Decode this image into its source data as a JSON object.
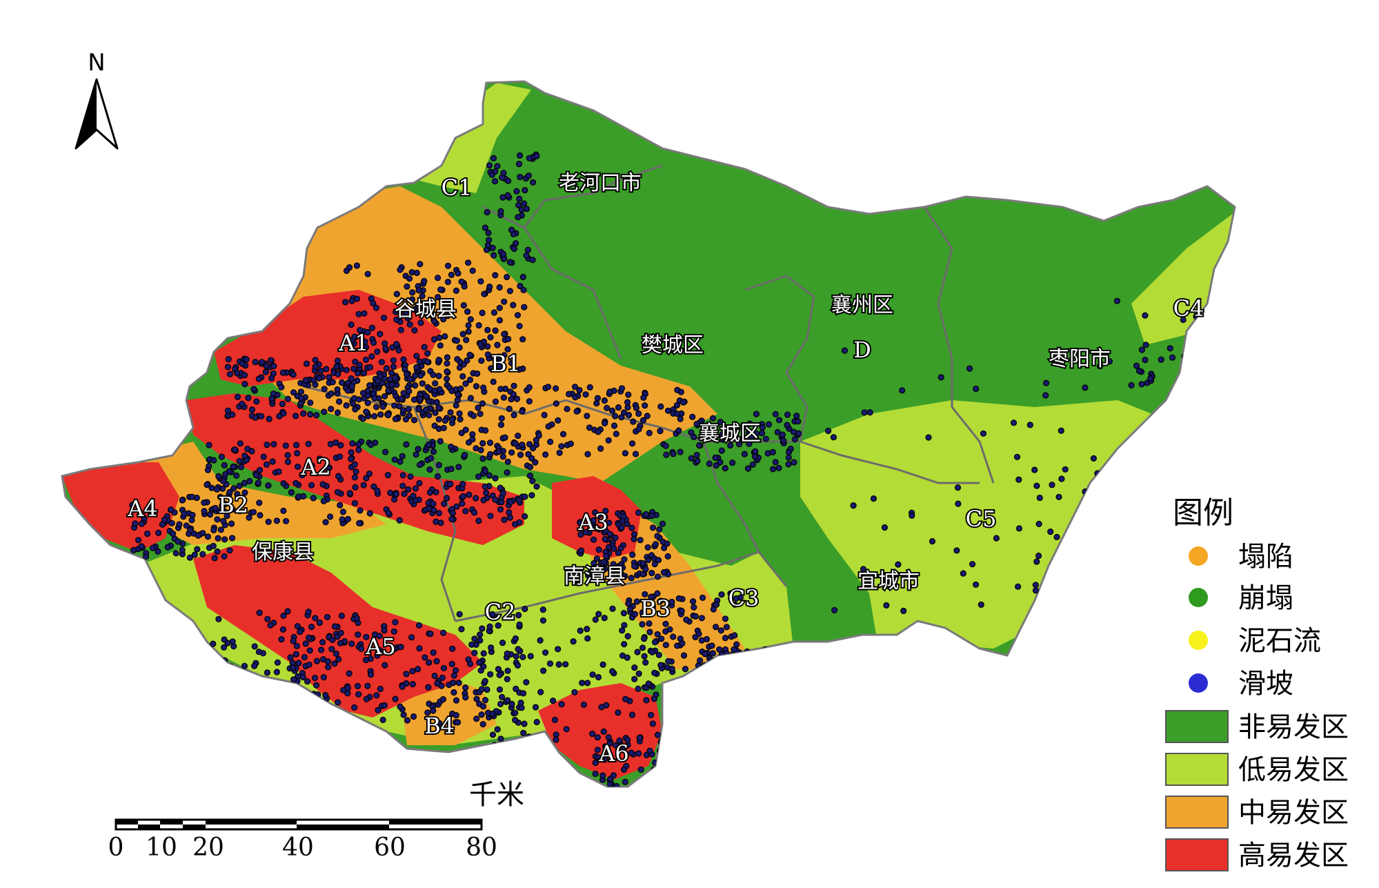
{
  "north": {
    "letter": "N"
  },
  "places": [
    {
      "id": "laohekou",
      "label": "老河口市"
    },
    {
      "id": "gucheng",
      "label": "谷城县"
    },
    {
      "id": "xiangzhou",
      "label": "襄州区"
    },
    {
      "id": "fancheng",
      "label": "樊城区"
    },
    {
      "id": "zaoyang",
      "label": "枣阳市"
    },
    {
      "id": "xiangcheng",
      "label": "襄城区"
    },
    {
      "id": "baokang",
      "label": "保康县"
    },
    {
      "id": "nanzhang",
      "label": "南漳县"
    },
    {
      "id": "yicheng",
      "label": "宜城市"
    }
  ],
  "zones": [
    "A1",
    "A2",
    "A3",
    "A4",
    "A5",
    "A6",
    "B1",
    "B2",
    "B3",
    "B4",
    "C1",
    "C2",
    "C3",
    "C4",
    "C5",
    "D"
  ],
  "legend": {
    "title": "图例",
    "points": [
      {
        "label": "塌陷",
        "color": "#f5a623"
      },
      {
        "label": "崩塌",
        "color": "#2e9a1e"
      },
      {
        "label": "泥石流",
        "color": "#f7f21a"
      },
      {
        "label": "滑坡",
        "color": "#2b2bd4"
      }
    ],
    "areas": [
      {
        "label": "非易发区",
        "color": "#3b9e28"
      },
      {
        "label": "低易发区",
        "color": "#b4dc37"
      },
      {
        "label": "中易发区",
        "color": "#f0a430"
      },
      {
        "label": "高易发区",
        "color": "#e8302b"
      }
    ]
  },
  "scale": {
    "unit": "千米",
    "ticks": [
      "0",
      "10",
      "20",
      "40",
      "60",
      "80"
    ]
  }
}
